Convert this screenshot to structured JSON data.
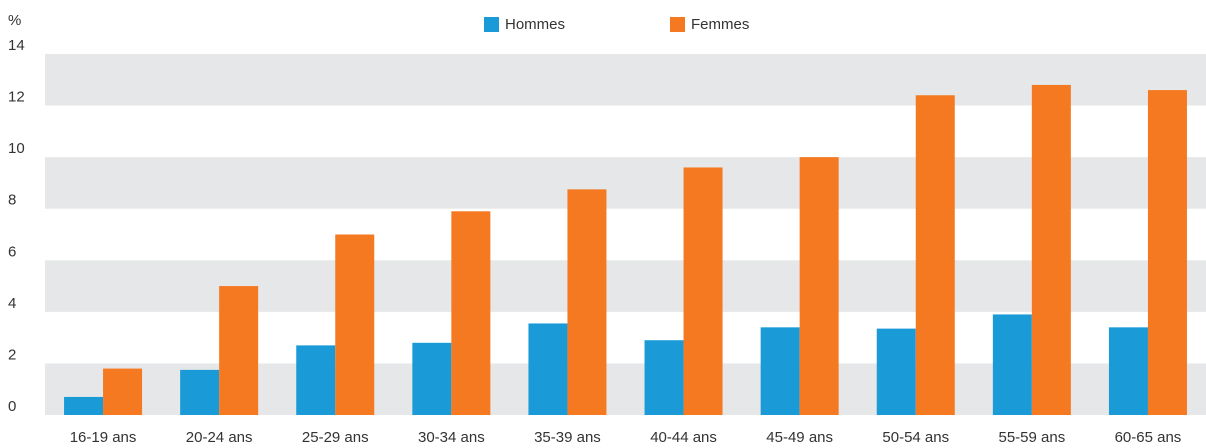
{
  "chart_data": {
    "type": "bar",
    "y_label": "%",
    "categories": [
      "16-19 ans",
      "20-24 ans",
      "25-29 ans",
      "30-34 ans",
      "35-39 ans",
      "40-44 ans",
      "45-49 ans",
      "50-54 ans",
      "55-59 ans",
      "60-65 ans"
    ],
    "series": [
      {
        "name": "Hommes",
        "color": "#1a9ad6",
        "values": [
          0.7,
          1.75,
          2.7,
          2.8,
          3.55,
          2.9,
          3.4,
          3.35,
          3.9,
          3.4
        ]
      },
      {
        "name": "Femmes",
        "color": "#f47920",
        "values": [
          1.8,
          5.0,
          7.0,
          7.9,
          8.75,
          9.6,
          10.0,
          12.4,
          12.8,
          12.6
        ]
      }
    ],
    "ylim": [
      0,
      14
    ],
    "yticks": [
      0,
      2,
      4,
      6,
      8,
      10,
      12,
      14
    ],
    "banded_grid": true,
    "legend": "top"
  }
}
